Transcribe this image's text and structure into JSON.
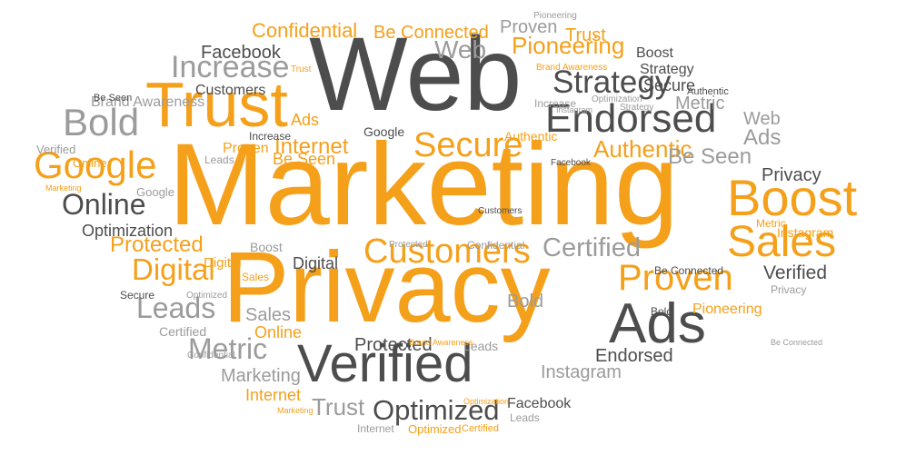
{
  "palette": {
    "orange": "#f5a01a",
    "dark": "#4d4d4d",
    "gray": "#9b9b9b",
    "background": "#ffffff"
  },
  "words": [
    {
      "text": "Marketing",
      "color": "orange"
    },
    {
      "text": "Privacy",
      "color": "orange"
    },
    {
      "text": "Web",
      "color": "dark"
    },
    {
      "text": "Verified",
      "color": "dark"
    },
    {
      "text": "Trust",
      "color": "orange"
    },
    {
      "text": "Ads",
      "color": "dark"
    },
    {
      "text": "Boost",
      "color": "orange"
    },
    {
      "text": "Sales",
      "color": "orange"
    },
    {
      "text": "Endorsed",
      "color": "dark"
    },
    {
      "text": "Bold",
      "color": "gray"
    },
    {
      "text": "Google",
      "color": "orange"
    },
    {
      "text": "Customers",
      "color": "orange"
    },
    {
      "text": "Increase",
      "color": "gray"
    },
    {
      "text": "Metric",
      "color": "gray"
    },
    {
      "text": "Leads",
      "color": "gray"
    },
    {
      "text": "Proven",
      "color": "orange"
    },
    {
      "text": "Strategy",
      "color": "dark"
    },
    {
      "text": "Secure",
      "color": "orange"
    },
    {
      "text": "Digital",
      "color": "orange"
    },
    {
      "text": "Online",
      "color": "dark"
    },
    {
      "text": "Certified",
      "color": "gray"
    },
    {
      "text": "Optimized",
      "color": "dark"
    },
    {
      "text": "Internet",
      "color": "orange"
    },
    {
      "text": "Authentic",
      "color": "orange"
    },
    {
      "text": "Web",
      "color": "gray"
    },
    {
      "text": "Pioneering",
      "color": "orange"
    },
    {
      "text": "Protected",
      "color": "orange"
    },
    {
      "text": "Confidential",
      "color": "orange"
    },
    {
      "text": "Be Connected",
      "color": "orange"
    },
    {
      "text": "Facebook",
      "color": "dark"
    },
    {
      "text": "Trust",
      "color": "gray"
    },
    {
      "text": "Be Seen",
      "color": "gray"
    },
    {
      "text": "Ads",
      "color": "gray"
    },
    {
      "text": "Web",
      "color": "gray"
    },
    {
      "text": "Metric",
      "color": "gray"
    },
    {
      "text": "Privacy",
      "color": "dark"
    },
    {
      "text": "Verified",
      "color": "dark"
    },
    {
      "text": "Proven",
      "color": "gray"
    },
    {
      "text": "Trust",
      "color": "orange"
    },
    {
      "text": "Boost",
      "color": "dark"
    },
    {
      "text": "Strategy",
      "color": "dark"
    },
    {
      "text": "Marketing",
      "color": "gray"
    },
    {
      "text": "Instagram",
      "color": "gray"
    },
    {
      "text": "Endorsed",
      "color": "dark"
    },
    {
      "text": "Bold",
      "color": "gray"
    },
    {
      "text": "Sales",
      "color": "gray"
    },
    {
      "text": "Digital",
      "color": "dark"
    },
    {
      "text": "Optimization",
      "color": "dark"
    },
    {
      "text": "Customers",
      "color": "dark"
    },
    {
      "text": "Secure",
      "color": "dark"
    },
    {
      "text": "Ads",
      "color": "orange"
    },
    {
      "text": "Internet",
      "color": "orange"
    },
    {
      "text": "Online",
      "color": "orange"
    },
    {
      "text": "Facebook",
      "color": "dark"
    },
    {
      "text": "Pioneering",
      "color": "orange"
    },
    {
      "text": "Protected",
      "color": "dark"
    },
    {
      "text": "Boost",
      "color": "gray"
    },
    {
      "text": "Brand Awareness",
      "color": "gray"
    },
    {
      "text": "Increase",
      "color": "dark"
    },
    {
      "text": "Google",
      "color": "dark"
    },
    {
      "text": "Be Seen",
      "color": "orange"
    },
    {
      "text": "Authentic",
      "color": "orange"
    },
    {
      "text": "Proven",
      "color": "orange"
    },
    {
      "text": "Leads",
      "color": "gray"
    },
    {
      "text": "Be Connected",
      "color": "dark"
    },
    {
      "text": "Bold",
      "color": "dark"
    },
    {
      "text": "Certified",
      "color": "gray"
    },
    {
      "text": "Verified",
      "color": "gray"
    },
    {
      "text": "Online",
      "color": "orange"
    },
    {
      "text": "Secure",
      "color": "dark"
    },
    {
      "text": "Be Seen",
      "color": "dark"
    },
    {
      "text": "Google",
      "color": "gray"
    },
    {
      "text": "Metric",
      "color": "orange"
    },
    {
      "text": "Instagram",
      "color": "orange"
    },
    {
      "text": "Privacy",
      "color": "gray"
    },
    {
      "text": "Authentic",
      "color": "dark"
    },
    {
      "text": "Optimization",
      "color": "gray"
    },
    {
      "text": "Pioneering",
      "color": "gray"
    },
    {
      "text": "Leads",
      "color": "gray"
    },
    {
      "text": "Digital",
      "color": "orange"
    },
    {
      "text": "Facebook",
      "color": "dark"
    },
    {
      "text": "Customers",
      "color": "dark"
    },
    {
      "text": "Confidential",
      "color": "gray"
    },
    {
      "text": "Protected",
      "color": "gray"
    },
    {
      "text": "Sales",
      "color": "orange"
    },
    {
      "text": "Optimized",
      "color": "gray"
    },
    {
      "text": "Confidential",
      "color": "gray"
    },
    {
      "text": "Brand Awareness",
      "color": "orange"
    },
    {
      "text": "Brand Awareness",
      "color": "orange"
    },
    {
      "text": "Optimization",
      "color": "orange"
    },
    {
      "text": "Marketing",
      "color": "orange"
    },
    {
      "text": "Marketing",
      "color": "orange"
    },
    {
      "text": "Instagram",
      "color": "gray"
    },
    {
      "text": "Strategy",
      "color": "gray"
    },
    {
      "text": "Trust",
      "color": "orange"
    },
    {
      "text": "Be Connected",
      "color": "gray"
    },
    {
      "text": "Increase",
      "color": "gray"
    },
    {
      "text": "Internet",
      "color": "gray"
    },
    {
      "text": "Optimized",
      "color": "orange"
    },
    {
      "text": "Certified",
      "color": "orange"
    },
    {
      "text": "Leads",
      "color": "gray"
    }
  ]
}
